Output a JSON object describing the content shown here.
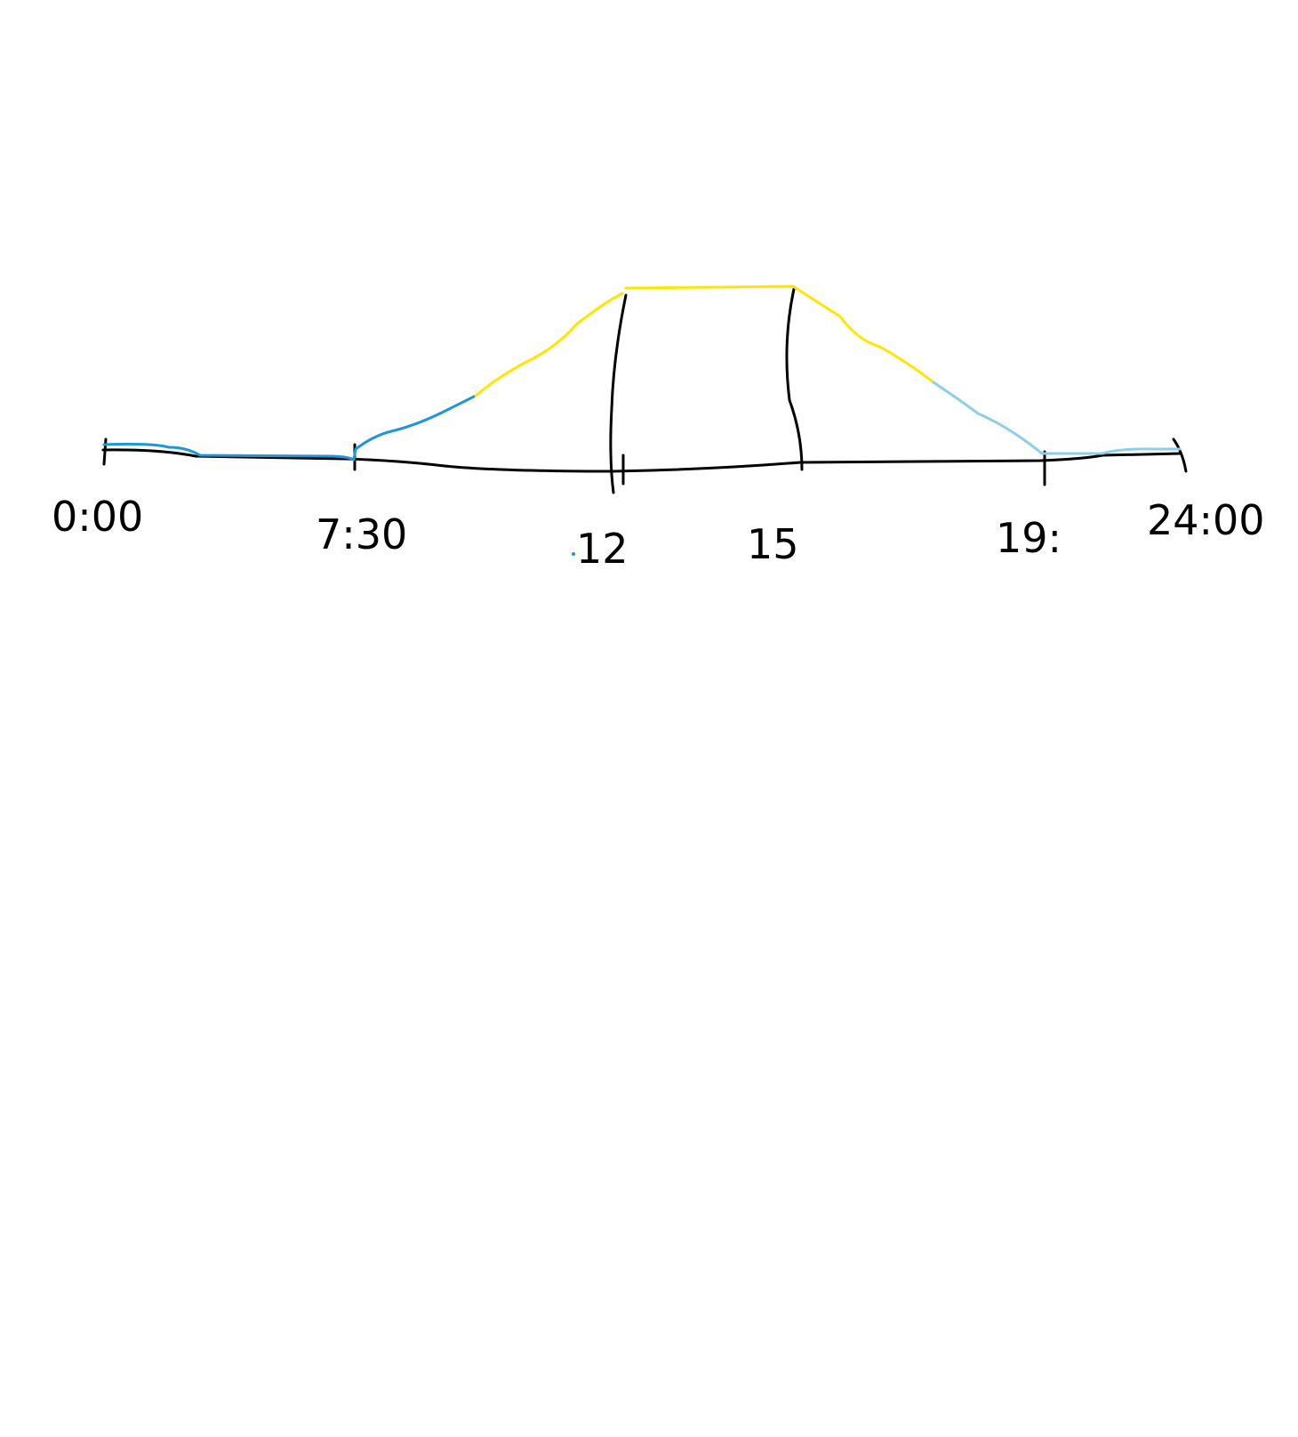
{
  "diagram": {
    "tick_labels": [
      {
        "id": "start",
        "text": "0:00"
      },
      {
        "id": "t730",
        "text": "7:30"
      },
      {
        "id": "t12",
        "text": "12"
      },
      {
        "id": "t15",
        "text": "15"
      },
      {
        "id": "t19",
        "text": "19:"
      },
      {
        "id": "end",
        "text": "24:00"
      }
    ],
    "colors": {
      "axis": "#000000",
      "night": "#1e96dc",
      "day": "#ffe600",
      "evening": "#8ccfe6",
      "background": "#ffffff"
    }
  }
}
